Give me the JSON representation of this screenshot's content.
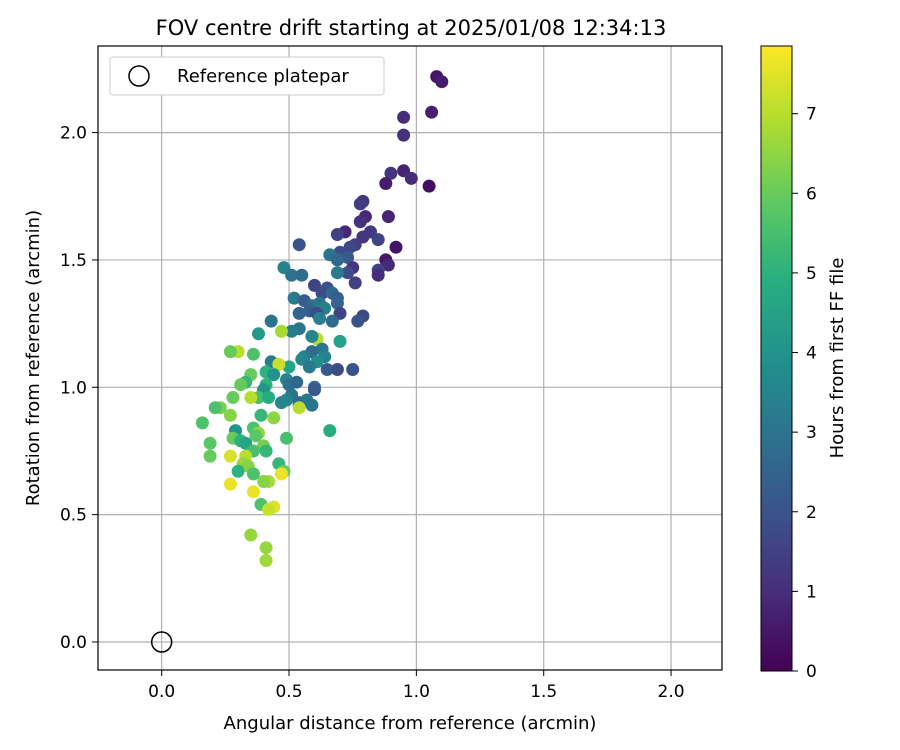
{
  "chart_data": {
    "type": "scatter",
    "title": "FOV centre drift starting at 2025/01/08 12:34:13",
    "xlabel": "Angular distance from reference (arcmin)",
    "ylabel": "Rotation from reference (arcmin)",
    "xlim": [
      -0.25,
      2.2
    ],
    "ylim": [
      -0.11,
      2.34
    ],
    "x_ticks": [
      0.0,
      0.5,
      1.0,
      1.5,
      2.0
    ],
    "x_tick_labels": [
      "0.0",
      "0.5",
      "1.0",
      "1.5",
      "2.0"
    ],
    "y_ticks": [
      0.0,
      0.5,
      1.0,
      1.5,
      2.0
    ],
    "y_tick_labels": [
      "0.0",
      "0.5",
      "1.0",
      "1.5",
      "2.0"
    ],
    "grid": true,
    "legend": {
      "position": "top-left",
      "entries": [
        "Reference platepar"
      ]
    },
    "reference_point": {
      "x": 0.0,
      "y": 0.0,
      "label": "Reference platepar"
    },
    "colorbar": {
      "label": "Hours from first FF file",
      "colormap": "viridis",
      "min": 0,
      "max": 7.85,
      "ticks": [
        0,
        1,
        2,
        3,
        4,
        5,
        6,
        7
      ],
      "tick_labels": [
        "0",
        "1",
        "2",
        "3",
        "4",
        "5",
        "6",
        "7"
      ]
    },
    "series": [
      {
        "points": [
          [
            1.08,
            2.22,
            0.5
          ],
          [
            1.1,
            2.2,
            0.6
          ],
          [
            1.06,
            2.08,
            0.7
          ],
          [
            0.95,
            2.06,
            1.0
          ],
          [
            0.95,
            1.99,
            1.1
          ],
          [
            0.95,
            1.85,
            0.8
          ],
          [
            0.9,
            1.84,
            1.2
          ],
          [
            0.98,
            1.82,
            1.0
          ],
          [
            0.88,
            1.8,
            0.6
          ],
          [
            1.05,
            1.79,
            0.3
          ],
          [
            0.79,
            1.73,
            1.2
          ],
          [
            0.78,
            1.72,
            1.4
          ],
          [
            0.8,
            1.67,
            0.9
          ],
          [
            0.89,
            1.67,
            0.8
          ],
          [
            0.78,
            1.65,
            1.1
          ],
          [
            0.72,
            1.61,
            0.9
          ],
          [
            0.82,
            1.61,
            1.3
          ],
          [
            0.69,
            1.6,
            1.5
          ],
          [
            0.79,
            1.59,
            1.2
          ],
          [
            0.85,
            1.58,
            1.6
          ],
          [
            0.76,
            1.56,
            1.4
          ],
          [
            0.74,
            1.55,
            1.7
          ],
          [
            0.54,
            1.56,
            2.0
          ],
          [
            0.92,
            1.55,
            0.4
          ],
          [
            0.7,
            1.53,
            1.8
          ],
          [
            0.73,
            1.51,
            2.2
          ],
          [
            0.66,
            1.52,
            3.0
          ],
          [
            0.69,
            1.5,
            2.6
          ],
          [
            0.88,
            1.5,
            0.5
          ],
          [
            0.89,
            1.48,
            0.9
          ],
          [
            0.75,
            1.47,
            1.2
          ],
          [
            0.85,
            1.46,
            1.5
          ],
          [
            0.48,
            1.47,
            3.5
          ],
          [
            0.51,
            1.44,
            3.0
          ],
          [
            0.55,
            1.44,
            2.8
          ],
          [
            0.73,
            1.45,
            1.8
          ],
          [
            0.85,
            1.44,
            1.0
          ],
          [
            0.69,
            1.45,
            3.2
          ],
          [
            0.76,
            1.41,
            1.5
          ],
          [
            0.6,
            1.4,
            1.6
          ],
          [
            0.65,
            1.39,
            2.0
          ],
          [
            0.63,
            1.37,
            1.8
          ],
          [
            0.67,
            1.37,
            2.6
          ],
          [
            0.69,
            1.35,
            2.3
          ],
          [
            0.52,
            1.35,
            3.2
          ],
          [
            0.56,
            1.34,
            2.3
          ],
          [
            0.59,
            1.32,
            2.7
          ],
          [
            0.62,
            1.33,
            3.0
          ],
          [
            0.69,
            1.33,
            2.5
          ],
          [
            0.64,
            1.31,
            3.4
          ],
          [
            0.58,
            1.3,
            2.4
          ],
          [
            0.54,
            1.29,
            2.5
          ],
          [
            0.61,
            1.29,
            1.8
          ],
          [
            0.7,
            1.29,
            1.6
          ],
          [
            0.79,
            1.28,
            1.8
          ],
          [
            0.77,
            1.26,
            2.0
          ],
          [
            0.62,
            1.27,
            3.4
          ],
          [
            0.43,
            1.26,
            3.0
          ],
          [
            0.67,
            1.26,
            2.7
          ],
          [
            0.54,
            1.23,
            3.0
          ],
          [
            0.51,
            1.22,
            3.3
          ],
          [
            0.47,
            1.22,
            6.8
          ],
          [
            0.61,
            1.19,
            7.0
          ],
          [
            0.7,
            1.18,
            4.5
          ],
          [
            0.59,
            1.2,
            3.6
          ],
          [
            0.63,
            1.15,
            3.1
          ],
          [
            0.38,
            1.21,
            4.2
          ],
          [
            0.59,
            1.14,
            2.8
          ],
          [
            0.56,
            1.12,
            3.3
          ],
          [
            0.64,
            1.12,
            3.5
          ],
          [
            0.61,
            1.1,
            3.8
          ],
          [
            0.55,
            1.11,
            3.6
          ],
          [
            0.58,
            1.08,
            3.2
          ],
          [
            0.65,
            1.07,
            2.2
          ],
          [
            0.69,
            1.07,
            1.8
          ],
          [
            0.75,
            1.07,
            2.0
          ],
          [
            0.43,
            1.1,
            3.3
          ],
          [
            0.5,
            1.08,
            4.6
          ],
          [
            0.46,
            1.09,
            7.2
          ],
          [
            0.36,
            1.13,
            5.6
          ],
          [
            0.3,
            1.14,
            7.0
          ],
          [
            0.27,
            1.14,
            6.0
          ],
          [
            0.41,
            1.06,
            5.0
          ],
          [
            0.44,
            1.05,
            4.0
          ],
          [
            0.35,
            1.05,
            6.0
          ],
          [
            0.49,
            1.03,
            3.6
          ],
          [
            0.5,
            1.01,
            3.0
          ],
          [
            0.53,
            1.02,
            2.6
          ],
          [
            0.6,
            1.0,
            2.6
          ],
          [
            0.6,
            0.99,
            2.2
          ],
          [
            0.33,
            1.02,
            5.2
          ],
          [
            0.31,
            1.01,
            6.0
          ],
          [
            0.41,
            1.01,
            5.0
          ],
          [
            0.4,
            0.99,
            4.0
          ],
          [
            0.51,
            0.97,
            3.0
          ],
          [
            0.54,
            0.94,
            2.8
          ],
          [
            0.57,
            0.95,
            3.2
          ],
          [
            0.49,
            0.95,
            3.5
          ],
          [
            0.47,
            0.94,
            3.6
          ],
          [
            0.54,
            0.93,
            2.7
          ],
          [
            0.59,
            0.93,
            3.0
          ],
          [
            0.38,
            0.96,
            5.5
          ],
          [
            0.42,
            0.96,
            4.8
          ],
          [
            0.35,
            0.96,
            7.0
          ],
          [
            0.28,
            0.96,
            6.0
          ],
          [
            0.23,
            0.92,
            6.2
          ],
          [
            0.21,
            0.92,
            5.6
          ],
          [
            0.27,
            0.89,
            6.4
          ],
          [
            0.39,
            0.89,
            5.2
          ],
          [
            0.44,
            0.88,
            6.5
          ],
          [
            0.54,
            0.92,
            7.0
          ],
          [
            0.16,
            0.86,
            5.6
          ],
          [
            0.29,
            0.83,
            4.0
          ],
          [
            0.36,
            0.84,
            5.6
          ],
          [
            0.38,
            0.82,
            6.6
          ],
          [
            0.49,
            0.8,
            5.5
          ],
          [
            0.66,
            0.83,
            4.8
          ],
          [
            0.28,
            0.8,
            6.0
          ],
          [
            0.31,
            0.79,
            5.0
          ],
          [
            0.37,
            0.81,
            5.8
          ],
          [
            0.33,
            0.78,
            4.6
          ],
          [
            0.19,
            0.78,
            5.8
          ],
          [
            0.4,
            0.77,
            6.2
          ],
          [
            0.36,
            0.75,
            5.5
          ],
          [
            0.41,
            0.75,
            5.2
          ],
          [
            0.19,
            0.73,
            6.0
          ],
          [
            0.27,
            0.73,
            7.4
          ],
          [
            0.33,
            0.73,
            7.0
          ],
          [
            0.32,
            0.7,
            6.6
          ],
          [
            0.34,
            0.69,
            6.4
          ],
          [
            0.46,
            0.7,
            5.2
          ],
          [
            0.3,
            0.67,
            5.0
          ],
          [
            0.36,
            0.66,
            5.6
          ],
          [
            0.48,
            0.67,
            6.0
          ],
          [
            0.47,
            0.66,
            7.6
          ],
          [
            0.42,
            0.63,
            6.8
          ],
          [
            0.27,
            0.62,
            7.6
          ],
          [
            0.4,
            0.63,
            6.4
          ],
          [
            0.36,
            0.59,
            7.6
          ],
          [
            0.39,
            0.54,
            5.6
          ],
          [
            0.44,
            0.53,
            7.5
          ],
          [
            0.42,
            0.52,
            7.2
          ],
          [
            0.35,
            0.42,
            6.6
          ],
          [
            0.41,
            0.37,
            6.6
          ],
          [
            0.41,
            0.32,
            6.7
          ]
        ]
      }
    ]
  }
}
